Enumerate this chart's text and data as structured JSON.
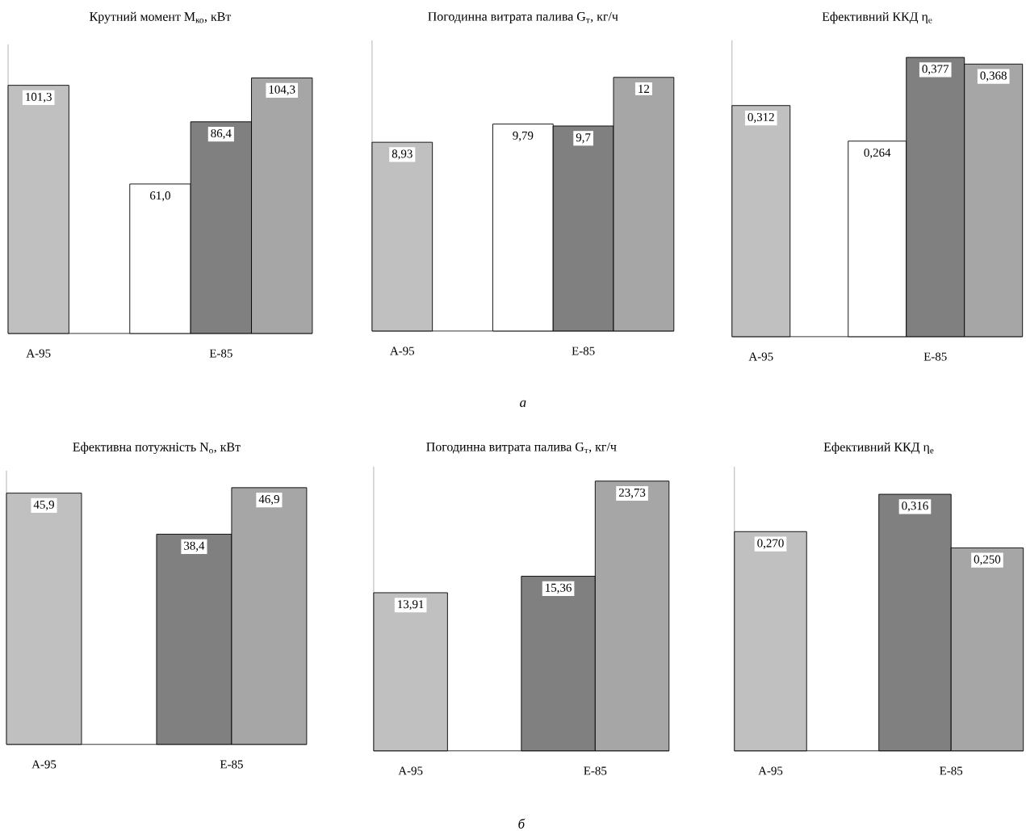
{
  "chart_data": [
    {
      "type": "bar",
      "title": "Крутний момент M$_{ко}$, кВт",
      "categories": [
        "A-95",
        "E-85"
      ],
      "ylim": [
        0,
        118
      ],
      "series": [
        {
          "color": "#c0c0c0",
          "values": [
            101.3,
            null
          ],
          "value_labels": [
            "101,3",
            null
          ]
        },
        {
          "color": "#ffffff",
          "values": [
            null,
            61.0
          ],
          "value_labels": [
            null,
            "61,0"
          ]
        },
        {
          "color": "#808080",
          "values": [
            null,
            86.4
          ],
          "value_labels": [
            null,
            "86,4"
          ]
        },
        {
          "color": "#a6a6a6",
          "values": [
            null,
            104.3
          ],
          "value_labels": [
            null,
            "104,3"
          ]
        }
      ]
    },
    {
      "type": "bar",
      "title": "Погодинна витрата палива G$_{т}$, кг/ч",
      "categories": [
        "A-95",
        "E-85"
      ],
      "ylim": [
        0,
        13.75
      ],
      "annotations": [
        "а"
      ],
      "series": [
        {
          "color": "#c0c0c0",
          "values": [
            8.93,
            null
          ],
          "value_labels": [
            "8,93",
            null
          ]
        },
        {
          "color": "#ffffff",
          "values": [
            null,
            9.79
          ],
          "value_labels": [
            null,
            "9,79"
          ]
        },
        {
          "color": "#808080",
          "values": [
            null,
            9.7
          ],
          "value_labels": [
            null,
            "9,7"
          ]
        },
        {
          "color": "#a6a6a6",
          "values": [
            null,
            12
          ],
          "value_labels": [
            null,
            "12"
          ]
        }
      ]
    },
    {
      "type": "bar",
      "title": "Ефективний ККД η$_{e}$",
      "categories": [
        "A-95",
        "E-85"
      ],
      "ylim": [
        0,
        0.4
      ],
      "series": [
        {
          "color": "#c0c0c0",
          "values": [
            0.312,
            null
          ],
          "value_labels": [
            "0,312",
            null
          ]
        },
        {
          "color": "#ffffff",
          "values": [
            null,
            0.264
          ],
          "value_labels": [
            null,
            "0,264"
          ]
        },
        {
          "color": "#808080",
          "values": [
            null,
            0.377
          ],
          "value_labels": [
            null,
            "0,377"
          ]
        },
        {
          "color": "#a6a6a6",
          "values": [
            null,
            0.368
          ],
          "value_labels": [
            null,
            "0,368"
          ]
        }
      ]
    },
    {
      "type": "bar",
      "title": "Ефективна потужність N$_{о}$, кВт",
      "categories": [
        "A-95",
        "E-85"
      ],
      "ylim": [
        0,
        50
      ],
      "series": [
        {
          "color": "#c0c0c0",
          "values": [
            45.9,
            null
          ],
          "value_labels": [
            "45,9",
            null
          ]
        },
        {
          "color": "#808080",
          "values": [
            null,
            38.4
          ],
          "value_labels": [
            null,
            "38,4"
          ]
        },
        {
          "color": "#a6a6a6",
          "values": [
            null,
            46.9
          ],
          "value_labels": [
            null,
            "46,9"
          ]
        }
      ]
    },
    {
      "type": "bar",
      "title": "Погодинна витрата палива G$_{т}$, кг/ч",
      "categories": [
        "A-95",
        "E-85"
      ],
      "ylim": [
        0,
        25
      ],
      "annotations": [
        "б"
      ],
      "series": [
        {
          "color": "#c0c0c0",
          "values": [
            13.91,
            null
          ],
          "value_labels": [
            "13,91",
            null
          ]
        },
        {
          "color": "#808080",
          "values": [
            null,
            15.36
          ],
          "value_labels": [
            null,
            "15,36"
          ]
        },
        {
          "color": "#a6a6a6",
          "values": [
            null,
            23.73
          ],
          "value_labels": [
            null,
            "23,73"
          ]
        }
      ]
    },
    {
      "type": "bar",
      "title": "Ефективний ККД η$_{e}$",
      "categories": [
        "A-95",
        "E-85"
      ],
      "ylim": [
        0,
        0.35
      ],
      "series": [
        {
          "color": "#c0c0c0",
          "values": [
            0.27,
            null
          ],
          "value_labels": [
            "0,270",
            null
          ]
        },
        {
          "color": "#808080",
          "values": [
            null,
            0.316
          ],
          "value_labels": [
            null,
            "0,316"
          ]
        },
        {
          "color": "#a6a6a6",
          "values": [
            null,
            0.25
          ],
          "value_labels": [
            null,
            "0,250"
          ]
        }
      ]
    }
  ]
}
